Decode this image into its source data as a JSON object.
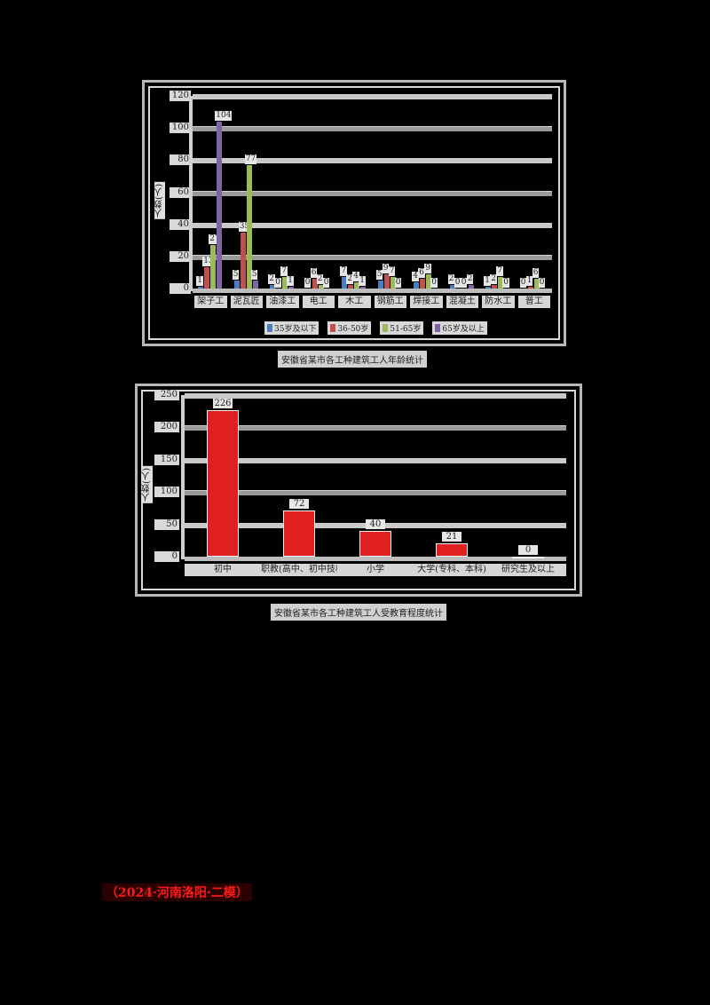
{
  "chart_data": [
    {
      "type": "bar",
      "title": "安徽省某市各工种建筑工人年龄统计",
      "xlabel": "",
      "ylabel": "人数(人)",
      "ylim": [
        0,
        120
      ],
      "yticks": [
        0,
        20,
        40,
        60,
        80,
        100,
        120
      ],
      "grid": true,
      "legend_position": "bottom",
      "categories": [
        "架子工",
        "泥瓦匠",
        "油漆工",
        "电工",
        "木工",
        "钢筋工",
        "焊接工",
        "混凝土",
        "防水工",
        "普工"
      ],
      "series": [
        {
          "name": "35岁及以下",
          "color": "#4a7ec0",
          "values": [
            1,
            5,
            2,
            0,
            7,
            5,
            4,
            2,
            1,
            0
          ]
        },
        {
          "name": "36-50岁",
          "color": "#c0504d",
          "values": [
            13,
            35,
            0,
            6,
            2,
            9,
            6,
            0,
            2,
            1
          ]
        },
        {
          "name": "51-65岁",
          "color": "#9bbb59",
          "values": [
            27,
            77,
            7,
            2,
            4,
            7,
            9,
            0,
            7,
            6
          ]
        },
        {
          "name": "65岁及以上",
          "color": "#8064a2",
          "values": [
            104,
            5,
            1,
            0,
            1,
            0,
            0,
            2,
            0,
            0
          ]
        }
      ]
    },
    {
      "type": "bar",
      "title": "安徽省某市各工种建筑工人受教育程度统计",
      "xlabel": "",
      "ylabel": "人数(人)",
      "ylim": [
        0,
        250
      ],
      "yticks": [
        0,
        50,
        100,
        150,
        200,
        250
      ],
      "grid": true,
      "categories": [
        "初中",
        "职教(高中、初中技校)",
        "小学",
        "大学(专科、本科)",
        "研究生及以上"
      ],
      "values": [
        226,
        72,
        40,
        21,
        0
      ],
      "color": "#e02020"
    }
  ],
  "chart1": {
    "ylabel": "人数(人)",
    "yticks": [
      "0",
      "20",
      "40",
      "60",
      "80",
      "100",
      "120"
    ],
    "categories": [
      "架子工",
      "泥瓦匠",
      "油漆工",
      "电工",
      "木工",
      "钢筋工",
      "焊接工",
      "混凝土",
      "防水工",
      "普工"
    ],
    "legend": [
      "35岁及以下",
      "36-50岁",
      "51-65岁",
      "65岁及以上"
    ],
    "caption": "安徽省某市各工种建筑工人年龄统计"
  },
  "chart2": {
    "ylabel": "人数(人)",
    "yticks": [
      "0",
      "50",
      "100",
      "150",
      "200",
      "250"
    ],
    "categories": [
      "初中",
      "职教(高中、初中技校)",
      "小学",
      "大学(专科、本科)",
      "研究生及以上"
    ],
    "values": [
      "226",
      "72",
      "40",
      "21",
      "0"
    ],
    "caption": "安徽省某市各工种建筑工人受教育程度统计"
  },
  "note": "（2024·河南洛阳·二模）"
}
